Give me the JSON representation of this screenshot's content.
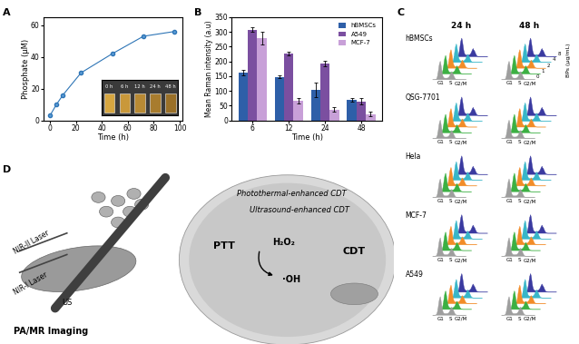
{
  "panel_labels": [
    "A",
    "B",
    "C",
    "D"
  ],
  "chart_data": [
    {
      "type": "line",
      "x": [
        0,
        5,
        10,
        24,
        48,
        72,
        96
      ],
      "values": [
        3,
        10,
        16,
        30,
        42,
        53,
        56
      ],
      "color": "#2e75b6",
      "marker": "o",
      "xlabel": "Time (h)",
      "ylabel": "Phosphate (μM)",
      "xlim": [
        -5,
        102
      ],
      "xticks": [
        0,
        20,
        40,
        60,
        80,
        100
      ],
      "ylim": [
        0,
        65
      ],
      "yticks": [
        0,
        20,
        40,
        60
      ],
      "annotations": [
        "0 h",
        "6 h",
        "12 h",
        "24 h",
        "48 h"
      ]
    },
    {
      "type": "bar",
      "categories": [
        "6",
        "12",
        "24",
        "48"
      ],
      "series": [
        {
          "name": "hBMSCs",
          "color": "#2e5fa8",
          "values": [
            162,
            148,
            103,
            70
          ],
          "errors": [
            10,
            5,
            25,
            6
          ]
        },
        {
          "name": "A549",
          "color": "#7b4fa0",
          "values": [
            308,
            228,
            193,
            65
          ],
          "errors": [
            8,
            6,
            8,
            10
          ]
        },
        {
          "name": "MCF-7",
          "color": "#c8a0d8",
          "values": [
            278,
            67,
            37,
            22
          ],
          "errors": [
            22,
            10,
            7,
            7
          ]
        }
      ],
      "xlabel": "Time (h)",
      "ylabel": "Mean Raman intensity (a.u)",
      "ylim": [
        0,
        350
      ],
      "yticks": [
        0,
        50,
        100,
        150,
        200,
        250,
        300,
        350
      ],
      "legend": "upper right"
    }
  ],
  "panel_C": {
    "columns": [
      "24 h",
      "48 h"
    ],
    "rows": [
      "hBMSCs",
      "QSG-7701",
      "Hela",
      "MCF-7",
      "A549"
    ],
    "phase_labels": [
      "G1",
      "S",
      "G2/M"
    ],
    "concentration_label": "BPs (μg/mL)",
    "concentrations": [
      0,
      1,
      2,
      4,
      8
    ],
    "colors": [
      "#9e9e9e",
      "#3cb043",
      "#f28c28",
      "#38b6c8",
      "#3a3aa0"
    ]
  },
  "panel_D": {
    "texts": [
      "Photothermal-enhanced CDT",
      "Ultrasound-enhanced CDT",
      "PTT",
      "H₂O₂",
      "·OH",
      "CDT",
      "NIR-II Laser",
      "NIR-I Laser",
      "US",
      "PA/MR Imaging"
    ]
  }
}
